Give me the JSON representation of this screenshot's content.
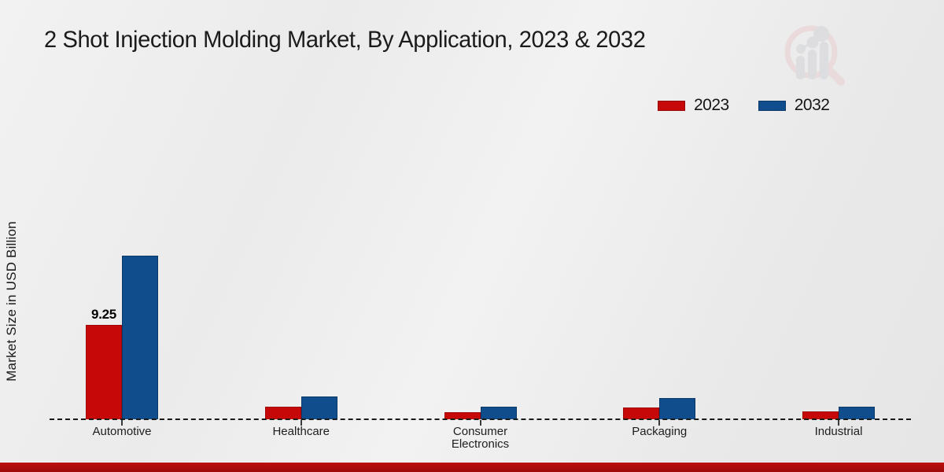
{
  "header": {
    "title": "2 Shot Injection Molding Market, By Application, 2023 & 2032"
  },
  "legend": {
    "items": [
      {
        "label": "2023",
        "color": "#c60808"
      },
      {
        "label": "2032",
        "color": "#0f4d8c"
      }
    ]
  },
  "axes": {
    "y_axis_label": "Market Size in USD Billion"
  },
  "icons": {
    "watermark": "magnifier-bar-chart-logo"
  },
  "colors": {
    "series_2023": "#c60808",
    "series_2032": "#0f4d8c",
    "footer_accent": "#a80b0b",
    "background": "#ededed"
  },
  "chart_data": {
    "type": "bar",
    "title": "2 Shot Injection Molding Market, By Application, 2023 & 2032",
    "xlabel": "",
    "ylabel": "Market Size in USD Billion",
    "categories": [
      "Automotive",
      "Healthcare",
      "Consumer Electronics",
      "Packaging",
      "Industrial"
    ],
    "series": [
      {
        "name": "2023",
        "color": "#c60808",
        "values": [
          9.25,
          1.25,
          0.7,
          1.15,
          0.8
        ]
      },
      {
        "name": "2032",
        "color": "#0f4d8c",
        "values": [
          16.0,
          2.25,
          1.2,
          2.1,
          1.25
        ]
      }
    ],
    "annotations": [
      {
        "category": "Automotive",
        "series": "2023",
        "text": "9.25"
      }
    ],
    "ylim": [
      0,
      17
    ],
    "grid": false,
    "axis_style": "dashed-baseline-only",
    "legend_position": "top-right"
  }
}
